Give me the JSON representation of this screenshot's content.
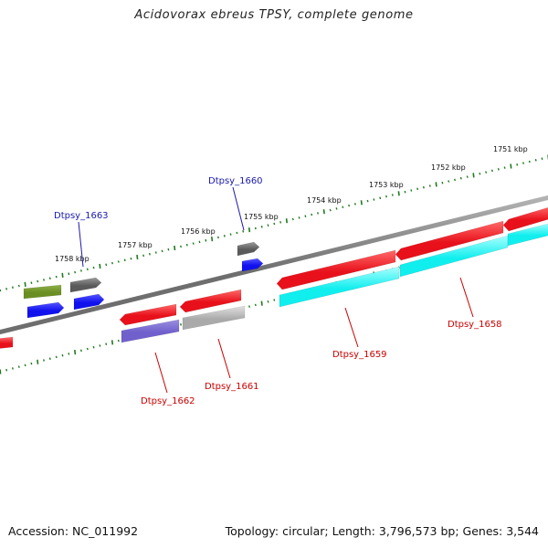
{
  "header": {
    "title": "Acidovorax ebreus TPSY, complete genome"
  },
  "footer": {
    "accession": "Accession: NC_011992",
    "summary": "Topology: circular; Length: 3,796,573 bp; Genes: 3,544"
  },
  "colors": {
    "backbone": "#888888",
    "tick": "#1f7a1f",
    "cds_forward": "#e8111b",
    "label_forward": "#cc0000",
    "label_reverse": "#1a1aaa",
    "cog_gray": "#777777",
    "cog_blue": "#1111ee",
    "cog_olive": "#6b8e23",
    "cog_cyan": "#11eeee",
    "cog_purple": "#7060cc",
    "cog_silver": "#bbbbbb"
  },
  "map": {
    "tick_labels": [
      "1751 kbp",
      "1752 kbp",
      "1753 kbp",
      "1754 kbp",
      "1755 kbp",
      "1756 kbp",
      "1757 kbp",
      "1758 kbp"
    ],
    "genes": [
      {
        "name": "Dtpsy_1658",
        "strand": "forward"
      },
      {
        "name": "Dtpsy_1659",
        "strand": "forward"
      },
      {
        "name": "Dtpsy_1660",
        "strand": "reverse"
      },
      {
        "name": "Dtpsy_1661",
        "strand": "forward"
      },
      {
        "name": "Dtpsy_1662",
        "strand": "forward"
      },
      {
        "name": "Dtpsy_1663",
        "strand": "reverse"
      }
    ]
  }
}
